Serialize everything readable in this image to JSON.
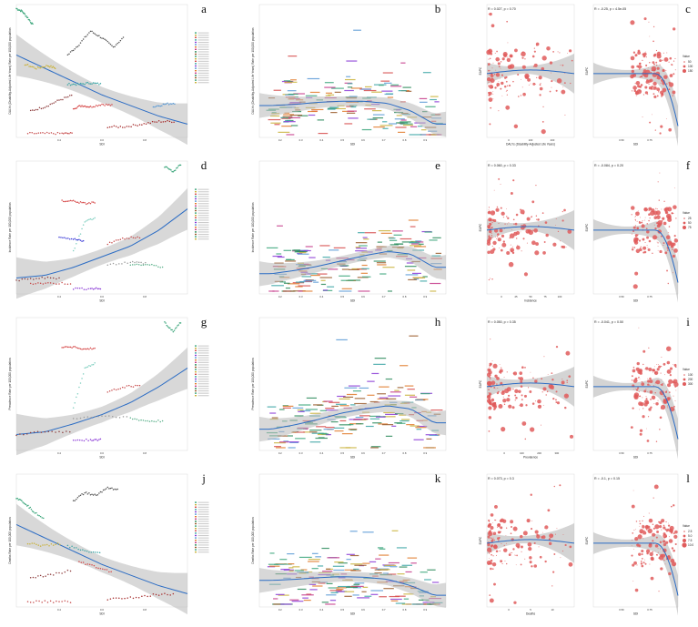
{
  "chart_data": [
    {
      "panel": "a",
      "type": "line",
      "xlabel": "SDI",
      "ylabel": "DALYs (Disability-Adjusted Life Years) Rate per 100,000 population",
      "xticks": [
        "0.4",
        "0.6",
        "0.8"
      ],
      "xlim": [
        0.3,
        0.9
      ],
      "ylim": [
        0,
        100
      ],
      "trend": {
        "x": [
          0.3,
          0.4,
          0.5,
          0.6,
          0.7,
          0.8,
          0.9
        ],
        "y": [
          62,
          52,
          42,
          32,
          24,
          16,
          10
        ]
      },
      "series": [
        {
          "color": "#3aa57a",
          "x": [
            0.3,
            0.32,
            0.34,
            0.36
          ],
          "y": [
            97,
            95,
            90,
            84
          ]
        },
        {
          "color": "#c9b23a",
          "x": [
            0.33,
            0.37,
            0.41,
            0.44
          ],
          "y": [
            55,
            52,
            54,
            52
          ]
        },
        {
          "color": "#555555",
          "x": [
            0.48,
            0.52,
            0.56,
            0.6,
            0.64,
            0.68
          ],
          "y": [
            62,
            70,
            80,
            75,
            68,
            76
          ]
        },
        {
          "color": "#3aa5a5",
          "x": [
            0.48,
            0.52,
            0.56,
            0.6
          ],
          "y": [
            40,
            40,
            41,
            40
          ]
        },
        {
          "color": "#d64a4a",
          "x": [
            0.5,
            0.53,
            0.56,
            0.6,
            0.64
          ],
          "y": [
            22,
            24,
            23,
            25,
            24
          ]
        },
        {
          "color": "#8c3a3a",
          "x": [
            0.35,
            0.4,
            0.45,
            0.5
          ],
          "y": [
            20,
            23,
            28,
            32
          ]
        },
        {
          "color": "#c64a4a",
          "x": [
            0.34,
            0.4,
            0.46,
            0.5
          ],
          "y": [
            3,
            3,
            3,
            3
          ]
        },
        {
          "color": "#a52a2a",
          "x": [
            0.62,
            0.68,
            0.74,
            0.8,
            0.86
          ],
          "y": [
            8,
            8,
            10,
            12,
            12
          ]
        },
        {
          "color": "#5a9ad6",
          "x": [
            0.78,
            0.82,
            0.86
          ],
          "y": [
            23,
            25,
            26
          ]
        }
      ],
      "legend_count": 22
    },
    {
      "panel": "b",
      "type": "scatter",
      "xlabel": "SDI",
      "ylabel": "DALYs (Disability-Adjusted Life Years) Rate per 100,000 population",
      "xticks": [
        "0.2",
        "0.3",
        "0.4",
        "0.5",
        "0.6",
        "0.7",
        "0.8",
        "0.9"
      ],
      "xlim": [
        0.15,
        0.95
      ],
      "ylim": [
        0,
        250
      ],
      "trend": {
        "x": [
          0.2,
          0.3,
          0.4,
          0.5,
          0.6,
          0.7,
          0.8,
          0.9
        ],
        "y": [
          60,
          62,
          66,
          68,
          68,
          64,
          50,
          25
        ]
      }
    },
    {
      "panel": "c",
      "type": "scatter",
      "subplots": [
        {
          "stat": "R = 0.027, p = 0.70",
          "xlabel": "DALYs (Disability-Adjusted Life Years)",
          "ylabel": "EAPC",
          "xticks": [
            "0",
            "100",
            "200"
          ]
        },
        {
          "stat": "R = -0.25, p = 4.5e-05",
          "xlabel": "SDI",
          "ylabel": "EAPC",
          "xticks": [
            "0.50",
            "0.75"
          ]
        }
      ],
      "legend": {
        "title": "Value",
        "entries": [
          "50",
          "100",
          "150"
        ]
      }
    },
    {
      "panel": "d",
      "type": "line",
      "xlabel": "SDI",
      "ylabel": "Incidence Rate per 100,000 population",
      "xticks": [
        "0.4",
        "0.6",
        "0.8"
      ],
      "xlim": [
        0.3,
        0.9
      ],
      "ylim": [
        0,
        100
      ],
      "trend": {
        "x": [
          0.3,
          0.4,
          0.5,
          0.6,
          0.7,
          0.8,
          0.9
        ],
        "y": [
          12,
          14,
          20,
          28,
          36,
          48,
          64
        ]
      },
      "series": [
        {
          "color": "#3aa57a",
          "x": [
            0.82,
            0.85,
            0.88
          ],
          "y": [
            96,
            92,
            98
          ]
        },
        {
          "color": "#d64a4a",
          "x": [
            0.46,
            0.5,
            0.54,
            0.58
          ],
          "y": [
            70,
            70,
            68,
            69
          ]
        },
        {
          "color": "#7fcfc0",
          "x": [
            0.5,
            0.54,
            0.58
          ],
          "y": [
            32,
            54,
            58
          ]
        },
        {
          "color": "#3a3ad6",
          "x": [
            0.45,
            0.5,
            0.54
          ],
          "y": [
            42,
            41,
            40
          ]
        },
        {
          "color": "#c64a4a",
          "x": [
            0.62,
            0.68,
            0.74
          ],
          "y": [
            38,
            42,
            43
          ]
        },
        {
          "color": "#9a9a9a",
          "x": [
            0.62,
            0.7,
            0.76
          ],
          "y": [
            22,
            24,
            23
          ]
        },
        {
          "color": "#5ab08a",
          "x": [
            0.7,
            0.76,
            0.82
          ],
          "y": [
            22,
            22,
            20
          ]
        },
        {
          "color": "#8c3a3a",
          "x": [
            0.3,
            0.38,
            0.46
          ],
          "y": [
            10,
            12,
            12
          ]
        },
        {
          "color": "#c64a4a",
          "x": [
            0.35,
            0.42,
            0.5
          ],
          "y": [
            8,
            8,
            8
          ]
        },
        {
          "color": "#8a3ad6",
          "x": [
            0.5,
            0.56,
            0.6
          ],
          "y": [
            4,
            4,
            4
          ]
        }
      ],
      "legend_count": 22
    },
    {
      "panel": "e",
      "type": "scatter",
      "xlabel": "SDI",
      "ylabel": "Incidence Rate per 100,000 population",
      "xticks": [
        "0.2",
        "0.3",
        "0.4",
        "0.5",
        "0.6",
        "0.7",
        "0.8",
        "0.9"
      ],
      "xlim": [
        0.15,
        0.95
      ],
      "ylim": [
        0,
        250
      ],
      "trend": {
        "x": [
          0.2,
          0.3,
          0.4,
          0.5,
          0.6,
          0.7,
          0.8,
          0.9
        ],
        "y": [
          38,
          44,
          52,
          62,
          72,
          80,
          75,
          50
        ]
      }
    },
    {
      "panel": "f",
      "type": "scatter",
      "subplots": [
        {
          "stat": "R = 0.060, p = 0.33",
          "xlabel": "Incidence",
          "ylabel": "EAPC",
          "xticks": [
            "0",
            "25",
            "50",
            "75",
            "100"
          ]
        },
        {
          "stat": "R = -0.084, p = 0.20",
          "xlabel": "SDI",
          "ylabel": "EAPC",
          "xticks": [
            "0.50",
            "0.75"
          ]
        }
      ],
      "legend": {
        "title": "Value",
        "entries": [
          "25",
          "50",
          "75"
        ]
      }
    },
    {
      "panel": "g",
      "type": "line",
      "xlabel": "SDI",
      "ylabel": "Prevalence Rate per 100,000 population",
      "xticks": [
        "0.4",
        "0.6",
        "0.8"
      ],
      "xlim": [
        0.3,
        0.9
      ],
      "ylim": [
        0,
        100
      ],
      "trend": {
        "x": [
          0.3,
          0.4,
          0.5,
          0.6,
          0.7,
          0.8,
          0.9
        ],
        "y": [
          12,
          14,
          20,
          27,
          36,
          48,
          62
        ]
      },
      "series": [
        {
          "color": "#3aa57a",
          "x": [
            0.82,
            0.85,
            0.88
          ],
          "y": [
            96,
            90,
            97
          ]
        },
        {
          "color": "#d64a4a",
          "x": [
            0.46,
            0.5,
            0.54,
            0.58
          ],
          "y": [
            78,
            78,
            76,
            77
          ]
        },
        {
          "color": "#7fcfc0",
          "x": [
            0.5,
            0.54,
            0.58
          ],
          "y": [
            32,
            62,
            66
          ]
        },
        {
          "color": "#c64a4a",
          "x": [
            0.62,
            0.68,
            0.74
          ],
          "y": [
            44,
            48,
            49
          ]
        },
        {
          "color": "#9a9a9a",
          "x": [
            0.5,
            0.6,
            0.7
          ],
          "y": [
            24,
            26,
            25
          ]
        },
        {
          "color": "#5ab08a",
          "x": [
            0.7,
            0.76,
            0.82
          ],
          "y": [
            24,
            22,
            22
          ]
        },
        {
          "color": "#8c3a3a",
          "x": [
            0.3,
            0.4,
            0.5
          ],
          "y": [
            12,
            14,
            14
          ]
        },
        {
          "color": "#8a3ad6",
          "x": [
            0.5,
            0.56,
            0.6
          ],
          "y": [
            8,
            8,
            8
          ]
        }
      ],
      "legend_count": 22
    },
    {
      "panel": "h",
      "type": "scatter",
      "xlabel": "SDI",
      "ylabel": "Prevalence Rate per 100,000 population",
      "xticks": [
        "0.2",
        "0.3",
        "0.4",
        "0.5",
        "0.6",
        "0.7",
        "0.8",
        "0.9"
      ],
      "xlim": [
        0.15,
        0.95
      ],
      "ylim": [
        0,
        250
      ],
      "trend": {
        "x": [
          0.2,
          0.3,
          0.4,
          0.5,
          0.6,
          0.7,
          0.8,
          0.9
        ],
        "y": [
          40,
          48,
          58,
          70,
          78,
          84,
          78,
          52
        ]
      }
    },
    {
      "panel": "i",
      "type": "scatter",
      "subplots": [
        {
          "stat": "R = 0.050, p = 0.35",
          "xlabel": "Prevalence",
          "ylabel": "EAPC",
          "xticks": [
            "0",
            "100",
            "200",
            "300"
          ]
        },
        {
          "stat": "R = -0.041, p = 0.50",
          "xlabel": "SDI",
          "ylabel": "EAPC",
          "xticks": [
            "0.50",
            "0.75"
          ]
        }
      ],
      "legend": {
        "title": "Value",
        "entries": [
          "100",
          "200",
          "300"
        ]
      }
    },
    {
      "panel": "j",
      "type": "line",
      "xlabel": "SDI",
      "ylabel": "Deaths Rate per 100,000 population",
      "xticks": [
        "0.4",
        "0.6",
        "0.8"
      ],
      "xlim": [
        0.3,
        0.9
      ],
      "ylim": [
        0,
        100
      ],
      "trend": {
        "x": [
          0.3,
          0.4,
          0.5,
          0.6,
          0.7,
          0.8,
          0.9
        ],
        "y": [
          62,
          52,
          42,
          32,
          24,
          16,
          10
        ]
      },
      "series": [
        {
          "color": "#3aa57a",
          "x": [
            0.3,
            0.33,
            0.36,
            0.4
          ],
          "y": [
            82,
            78,
            72,
            66
          ]
        },
        {
          "color": "#555555",
          "x": [
            0.5,
            0.54,
            0.58,
            0.62,
            0.66
          ],
          "y": [
            80,
            86,
            84,
            90,
            88
          ]
        },
        {
          "color": "#c9b23a",
          "x": [
            0.34,
            0.4,
            0.46
          ],
          "y": [
            48,
            46,
            48
          ]
        },
        {
          "color": "#3aa5a5",
          "x": [
            0.48,
            0.54,
            0.6
          ],
          "y": [
            46,
            42,
            40
          ]
        },
        {
          "color": "#d64a4a",
          "x": [
            0.52,
            0.58,
            0.64
          ],
          "y": [
            34,
            30,
            26
          ]
        },
        {
          "color": "#8c3a3a",
          "x": [
            0.35,
            0.42,
            0.5
          ],
          "y": [
            22,
            24,
            28
          ]
        },
        {
          "color": "#c64a4a",
          "x": [
            0.34,
            0.42,
            0.5
          ],
          "y": [
            4,
            4,
            4
          ]
        },
        {
          "color": "#a52a2a",
          "x": [
            0.62,
            0.7,
            0.78,
            0.86
          ],
          "y": [
            6,
            7,
            9,
            10
          ]
        }
      ],
      "legend_count": 22
    },
    {
      "panel": "k",
      "type": "scatter",
      "xlabel": "SDI",
      "ylabel": "Deaths Rate per 100,000 population",
      "xticks": [
        "0.2",
        "0.3",
        "0.4",
        "0.5",
        "0.6",
        "0.7",
        "0.8",
        "0.9"
      ],
      "xlim": [
        0.15,
        0.95
      ],
      "ylim": [
        0,
        250
      ],
      "trend": {
        "x": [
          0.2,
          0.3,
          0.4,
          0.5,
          0.6,
          0.7,
          0.8,
          0.9
        ],
        "y": [
          50,
          52,
          55,
          57,
          56,
          52,
          40,
          22
        ]
      }
    },
    {
      "panel": "l",
      "type": "scatter",
      "subplots": [
        {
          "stat": "R = 0.073, p = 0.3",
          "xlabel": "Deaths",
          "ylabel": "EAPC",
          "xticks": [
            "0",
            "5",
            "10"
          ]
        },
        {
          "stat": "R = -0.1, p = 0.15",
          "xlabel": "SDI",
          "ylabel": "EAPC",
          "xticks": [
            "0.50",
            "0.75"
          ]
        }
      ],
      "legend": {
        "title": "Value",
        "entries": [
          "2.5",
          "5.0",
          "7.5",
          "10.0"
        ]
      }
    }
  ],
  "colors": {
    "trend_line": "#2b6cc4",
    "confidence_band": "#b8b8b8",
    "eapc_point": "#e05c5c",
    "palette": [
      "#3aa57a",
      "#c9b23a",
      "#d64a4a",
      "#3aa5a5",
      "#8a3ad6",
      "#5a9ad6",
      "#e07a2a",
      "#c43a8a",
      "#2a8a5a",
      "#9a5a2a"
    ]
  }
}
